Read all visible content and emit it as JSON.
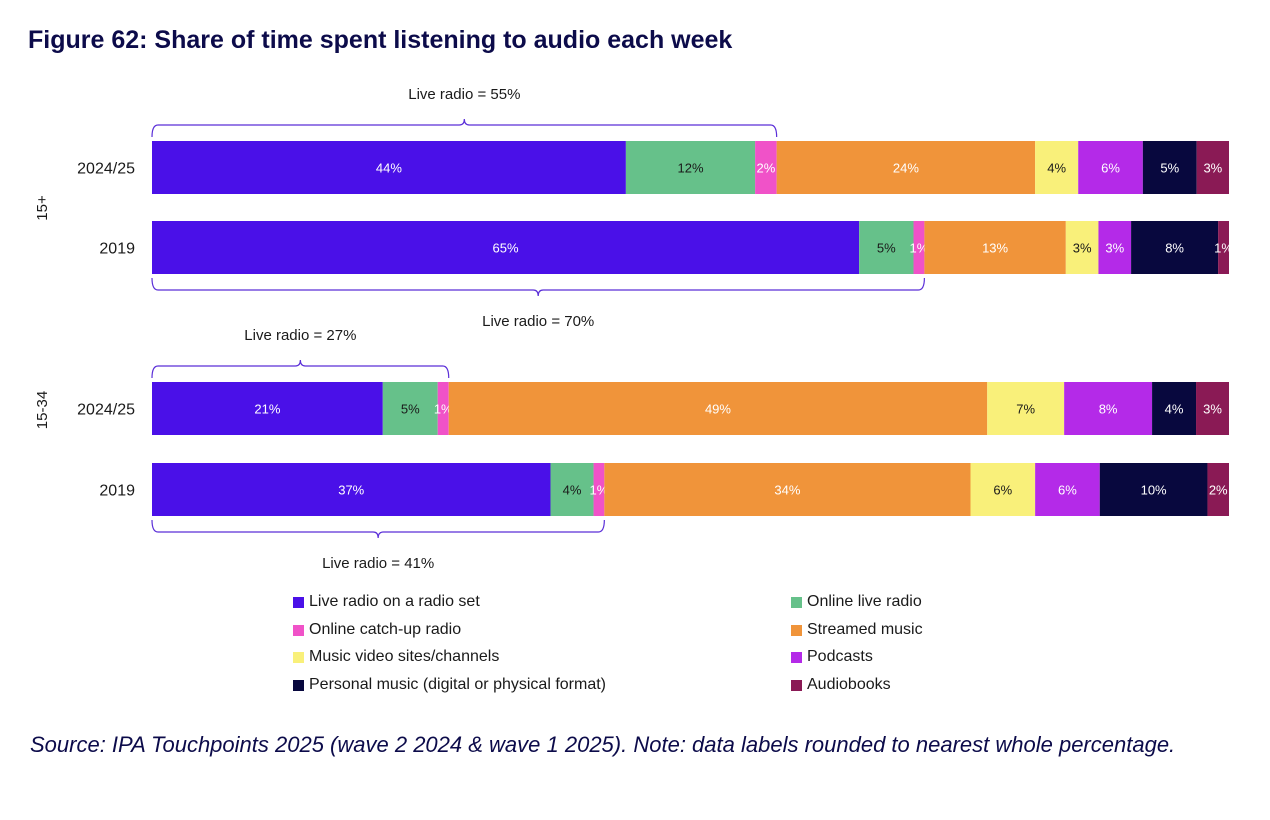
{
  "title": "Figure 62: Share of time spent listening to audio each week",
  "source": "Source: IPA Touchpoints 2025 (wave 2 2024 & wave 1 2025). Note: data labels rounded to nearest whole percentage.",
  "chart_data": {
    "type": "stacked-bar-horizontal",
    "title": "Figure 62: Share of time spent listening to audio each week",
    "xlim": [
      0,
      100
    ],
    "series": [
      {
        "name": "Live radio on a radio set",
        "color": "#4a10e8"
      },
      {
        "name": "Online live radio",
        "color": "#66c18a"
      },
      {
        "name": "Online catch-up radio",
        "color": "#f052c8"
      },
      {
        "name": "Streamed music",
        "color": "#f0943a"
      },
      {
        "name": "Music video sites/channels",
        "color": "#f9f07a"
      },
      {
        "name": "Podcasts",
        "color": "#b42ae8"
      },
      {
        "name": "Personal music (digital or physical format)",
        "color": "#08083e"
      },
      {
        "name": "Audiobooks",
        "color": "#8a1a55"
      }
    ],
    "groups": [
      {
        "name": "15+",
        "bars": [
          {
            "category": "2024/25",
            "values": [
              44,
              12,
              2,
              24,
              4,
              6,
              5,
              3
            ],
            "labels": [
              "44%",
              "12%",
              "2%",
              "24%",
              "4%",
              "6%",
              "5%",
              "3%"
            ]
          },
          {
            "category": "2019",
            "values": [
              65,
              5,
              1,
              13,
              3,
              3,
              8,
              1
            ],
            "labels": [
              "65%",
              "5%",
              "1%",
              "13%",
              "3%",
              "3%",
              "8%",
              "1%"
            ]
          }
        ]
      },
      {
        "name": "15-34",
        "bars": [
          {
            "category": "2024/25",
            "values": [
              21,
              5,
              1,
              49,
              7,
              8,
              4,
              3
            ],
            "labels": [
              "21%",
              "5%",
              "1%",
              "49%",
              "7%",
              "8%",
              "4%",
              "3%"
            ]
          },
          {
            "category": "2019",
            "values": [
              37,
              4,
              1,
              34,
              6,
              6,
              10,
              2
            ],
            "labels": [
              "37%",
              "4%",
              "1%",
              "34%",
              "6%",
              "6%",
              "10%",
              "2%"
            ]
          }
        ]
      }
    ],
    "annotations": [
      {
        "text": "Live radio = 55%",
        "group": 0,
        "bar": 0,
        "position": "above",
        "value": 55
      },
      {
        "text": "Live radio = 70%",
        "group": 0,
        "bar": 1,
        "position": "below",
        "value": 70
      },
      {
        "text": "Live radio = 27%",
        "group": 1,
        "bar": 0,
        "position": "above",
        "value": 27
      },
      {
        "text": "Live radio = 41%",
        "group": 1,
        "bar": 1,
        "position": "below",
        "value": 41
      }
    ]
  }
}
